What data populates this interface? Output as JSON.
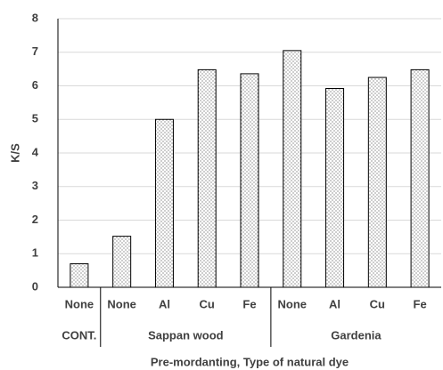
{
  "chart_data": {
    "type": "bar",
    "y_label": "K/S",
    "x_label": "Pre-mordanting, Type of  natural dye",
    "groups": [
      {
        "name": "CONT.",
        "categories": [
          "None"
        ],
        "values": [
          0.7
        ]
      },
      {
        "name": "Sappan wood",
        "categories": [
          "None",
          "Al",
          "Cu",
          "Fe"
        ],
        "values": [
          1.52,
          5.0,
          6.48,
          6.36
        ]
      },
      {
        "name": "Gardenia",
        "categories": [
          "None",
          "Al",
          "Cu",
          "Fe"
        ],
        "values": [
          7.05,
          5.92,
          6.25,
          6.48
        ]
      }
    ],
    "color": "#ffffff",
    "ylim": [
      0,
      8
    ],
    "yticks": [
      0,
      1,
      2,
      3,
      4,
      5,
      6,
      7,
      8
    ],
    "grid": true
  }
}
